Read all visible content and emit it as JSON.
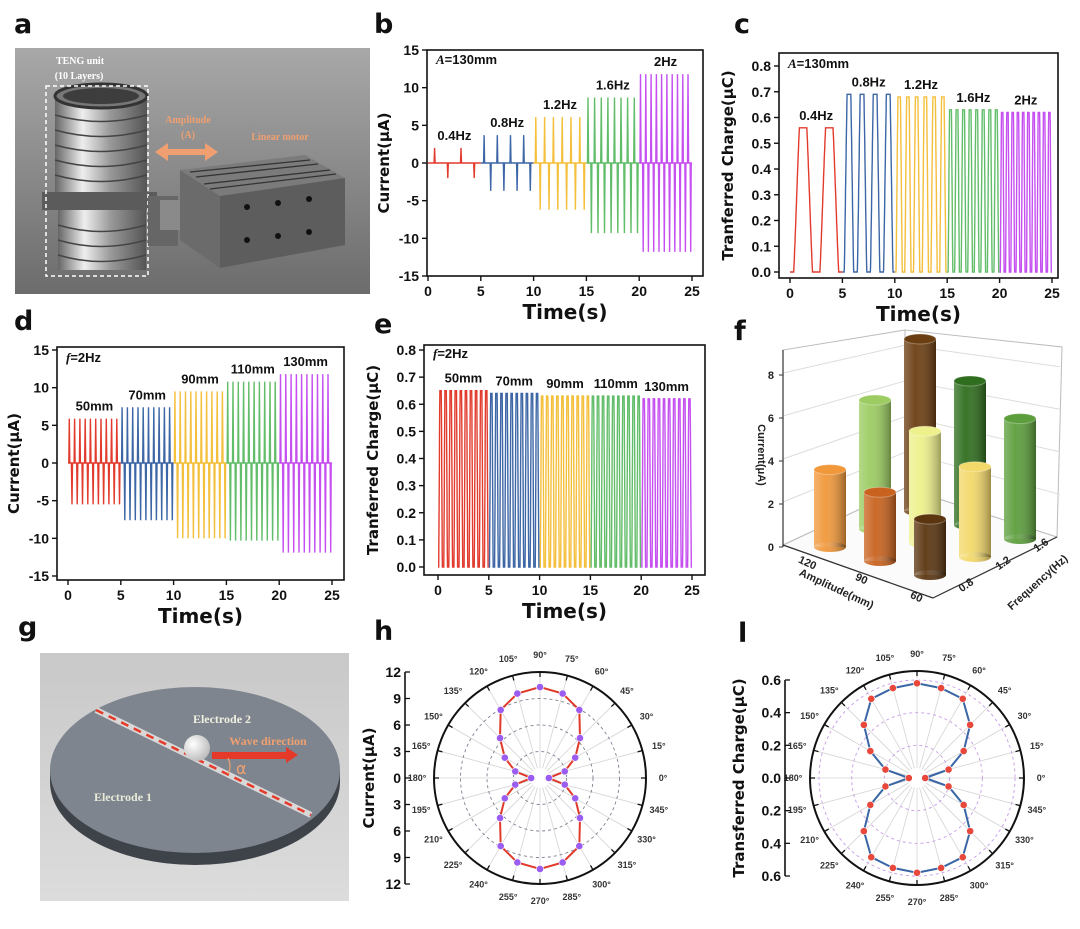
{
  "panels": [
    "a",
    "b",
    "c",
    "d",
    "e",
    "f",
    "g",
    "h",
    "l"
  ],
  "diagram_a": {
    "teng_unit": "TENG unit",
    "layers": "(10 Layers)",
    "amplitude": "Amplitude",
    "amplitude_symbol": "(A)",
    "linear_motor": "Linear motor"
  },
  "diagram_g": {
    "electrode2": "Electrode 2",
    "electrode1": "Electrode 1",
    "wave_direction": "Wave direction",
    "alpha": "α"
  },
  "chart_data": [
    {
      "type": "line",
      "panel": "b",
      "annotation": {
        "var": "A",
        "text": "=130mm"
      },
      "xlabel": "Time(s)",
      "ylabel": "Current(μA)",
      "xlim": [
        0,
        25
      ],
      "ylim": [
        -15,
        15
      ],
      "xticks": [
        "0",
        "5",
        "10",
        "15",
        "20",
        "25"
      ],
      "yticks": [
        "-15",
        "-10",
        "-5",
        "0",
        "5",
        "10",
        "15"
      ],
      "series": [
        {
          "name": "0.4Hz",
          "t": [
            0,
            5
          ],
          "freq": 0.4,
          "max": 2,
          "min": -2,
          "color": "#e23b2e"
        },
        {
          "name": "0.8Hz",
          "t": [
            5,
            10
          ],
          "freq": 0.8,
          "max": 3.7,
          "min": -3.7,
          "color": "#3d66a6"
        },
        {
          "name": "1.2Hz",
          "t": [
            10,
            15
          ],
          "freq": 1.2,
          "max": 6.1,
          "min": -6.2,
          "color": "#f4bf3a"
        },
        {
          "name": "1.6Hz",
          "t": [
            15,
            20
          ],
          "freq": 1.6,
          "max": 8.7,
          "min": -9.3,
          "color": "#62bd6a"
        },
        {
          "name": "2Hz",
          "t": [
            20,
            25
          ],
          "freq": 2,
          "max": 11.8,
          "min": -11.8,
          "color": "#c64ff0"
        }
      ]
    },
    {
      "type": "line",
      "panel": "c",
      "annotation": {
        "var": "A",
        "text": "=130mm"
      },
      "xlabel": "Time(s)",
      "ylabel": "Tranferred Charge(μC)",
      "xlim": [
        0,
        25
      ],
      "ylim": [
        0,
        0.8
      ],
      "xticks": [
        "0",
        "5",
        "10",
        "15",
        "20",
        "25"
      ],
      "yticks": [
        "0.0",
        "0.1",
        "0.2",
        "0.3",
        "0.4",
        "0.5",
        "0.6",
        "0.7",
        "0.8"
      ],
      "series": [
        {
          "name": "0.4Hz",
          "t": [
            0,
            5
          ],
          "freq": 0.4,
          "max": 0.56,
          "color": "#e23b2e"
        },
        {
          "name": "0.8Hz",
          "t": [
            5,
            10
          ],
          "freq": 0.8,
          "max": 0.69,
          "color": "#3d66a6"
        },
        {
          "name": "1.2Hz",
          "t": [
            10,
            15
          ],
          "freq": 1.2,
          "max": 0.68,
          "color": "#f4bf3a"
        },
        {
          "name": "1.6Hz",
          "t": [
            15,
            20
          ],
          "freq": 1.6,
          "max": 0.63,
          "color": "#62bd6a"
        },
        {
          "name": "2Hz",
          "t": [
            20,
            25
          ],
          "freq": 2,
          "max": 0.62,
          "color": "#c64ff0"
        }
      ]
    },
    {
      "type": "line",
      "panel": "d",
      "annotation": {
        "var": "f",
        "text": "=2Hz"
      },
      "xlabel": "Time(s)",
      "ylabel": "Current(μA)",
      "xlim": [
        0,
        25
      ],
      "ylim": [
        -15,
        15
      ],
      "xticks": [
        "0",
        "5",
        "10",
        "15",
        "20",
        "25"
      ],
      "yticks": [
        "-15",
        "-10",
        "-5",
        "0",
        "5",
        "10",
        "15"
      ],
      "series": [
        {
          "name": "50mm",
          "t": [
            0,
            5
          ],
          "freq": 2,
          "max": 5.9,
          "min": -5.5,
          "color": "#e23b2e"
        },
        {
          "name": "70mm",
          "t": [
            5,
            10
          ],
          "freq": 2,
          "max": 7.4,
          "min": -7.6,
          "color": "#3d66a6"
        },
        {
          "name": "90mm",
          "t": [
            10,
            15
          ],
          "freq": 2,
          "max": 9.5,
          "min": -10,
          "color": "#f4bf3a"
        },
        {
          "name": "110mm",
          "t": [
            15,
            20
          ],
          "freq": 2,
          "max": 10.8,
          "min": -10.3,
          "color": "#62bd6a"
        },
        {
          "name": "130mm",
          "t": [
            20,
            25
          ],
          "freq": 2,
          "max": 11.8,
          "min": -11.9,
          "color": "#c64ff0"
        }
      ]
    },
    {
      "type": "line",
      "panel": "e",
      "annotation": {
        "var": "f",
        "text": "=2Hz"
      },
      "xlabel": "Time(s)",
      "ylabel": "Tranferred Charge(μC)",
      "xlim": [
        0,
        25
      ],
      "ylim": [
        0,
        0.8
      ],
      "xticks": [
        "0",
        "5",
        "10",
        "15",
        "20",
        "25"
      ],
      "yticks": [
        "0.0",
        "0.1",
        "0.2",
        "0.3",
        "0.4",
        "0.5",
        "0.6",
        "0.7",
        "0.8"
      ],
      "series": [
        {
          "name": "50mm",
          "t": [
            0,
            5
          ],
          "freq": 2,
          "max": 0.65,
          "color": "#e23b2e"
        },
        {
          "name": "70mm",
          "t": [
            5,
            10
          ],
          "freq": 2,
          "max": 0.64,
          "color": "#3d66a6"
        },
        {
          "name": "90mm",
          "t": [
            10,
            15
          ],
          "freq": 2,
          "max": 0.63,
          "color": "#f4bf3a"
        },
        {
          "name": "110mm",
          "t": [
            15,
            20
          ],
          "freq": 2,
          "max": 0.63,
          "color": "#62bd6a"
        },
        {
          "name": "130mm",
          "t": [
            20,
            25
          ],
          "freq": 2,
          "max": 0.62,
          "color": "#c64ff0"
        }
      ]
    },
    {
      "type": "bar3d",
      "panel": "f",
      "ylabel": "Current(μA)",
      "xlabel": "Amplitude(mm)",
      "zlabel": "Frequency(Hz)",
      "ylim": [
        0,
        9
      ],
      "yticks": [
        "0",
        "2",
        "4",
        "6",
        "8"
      ],
      "amplitude_ticks": [
        "120",
        "90",
        "60"
      ],
      "frequency_ticks": [
        "0.8",
        "1.2",
        "1.6"
      ],
      "bars": [
        {
          "amplitude": "120",
          "frequency": "0.8",
          "value": 3.6,
          "color": "#f0983a"
        },
        {
          "amplitude": "90",
          "frequency": "0.8",
          "value": 3.2,
          "color": "#c8621e"
        },
        {
          "amplitude": "60",
          "frequency": "0.8",
          "value": 2.6,
          "color": "#5a3510"
        },
        {
          "amplitude": "120",
          "frequency": "1.2",
          "value": 6.0,
          "color": "#9ccc62"
        },
        {
          "amplitude": "90",
          "frequency": "1.2",
          "value": 5.2,
          "color": "#eef08c"
        },
        {
          "amplitude": "60",
          "frequency": "1.2",
          "value": 4.2,
          "color": "#f3d86a"
        },
        {
          "amplitude": "120",
          "frequency": "1.6",
          "value": 8.0,
          "color": "#6b3e12"
        },
        {
          "amplitude": "90",
          "frequency": "1.6",
          "value": 6.7,
          "color": "#2f6e1e"
        },
        {
          "amplitude": "60",
          "frequency": "1.6",
          "value": 5.6,
          "color": "#5c9e3c"
        }
      ]
    },
    {
      "type": "polar",
      "panel": "h",
      "ylabel": "Current(μA)",
      "rlim": [
        0,
        12
      ],
      "rticks": [
        "12",
        "9",
        "6",
        "3",
        "0",
        "3",
        "6",
        "9",
        "12"
      ],
      "angles": [
        "0°",
        "15°",
        "30°",
        "45°",
        "60°",
        "75°",
        "90°",
        "105°",
        "120°",
        "135°",
        "150°",
        "165°",
        "180°",
        "195°",
        "210°",
        "225°",
        "240°",
        "255°",
        "270°",
        "285°",
        "300°",
        "315°",
        "330°",
        "345°"
      ],
      "values": [
        1.0,
        2.9,
        4.6,
        6.4,
        8.9,
        9.9,
        10.3,
        9.9,
        8.9,
        6.4,
        4.6,
        2.9,
        1.0,
        2.9,
        4.6,
        6.4,
        8.9,
        9.9,
        10.3,
        9.9,
        8.9,
        6.4,
        4.6,
        2.9
      ],
      "line_color": "#e03a2a",
      "marker_color": "#9b5cf0"
    },
    {
      "type": "polar",
      "panel": "l",
      "ylabel": "Transferred Charge(μC)",
      "rlim": [
        0,
        0.6
      ],
      "rticks": [
        "0.6",
        "0.4",
        "0.2",
        "0.0",
        "0.2",
        "0.4",
        "0.6"
      ],
      "angles": [
        "0°",
        "15°",
        "30°",
        "45°",
        "60°",
        "75°",
        "90°",
        "105°",
        "120°",
        "135°",
        "150°",
        "165°",
        "180°",
        "195°",
        "210°",
        "225°",
        "240°",
        "255°",
        "270°",
        "285°",
        "300°",
        "315°",
        "330°",
        "345°"
      ],
      "values": [
        0.05,
        0.2,
        0.33,
        0.46,
        0.56,
        0.57,
        0.58,
        0.57,
        0.56,
        0.46,
        0.33,
        0.2,
        0.05,
        0.2,
        0.33,
        0.46,
        0.56,
        0.57,
        0.58,
        0.57,
        0.56,
        0.46,
        0.33,
        0.2
      ],
      "line_color": "#3a66a6",
      "marker_color": "#e8473c"
    }
  ]
}
